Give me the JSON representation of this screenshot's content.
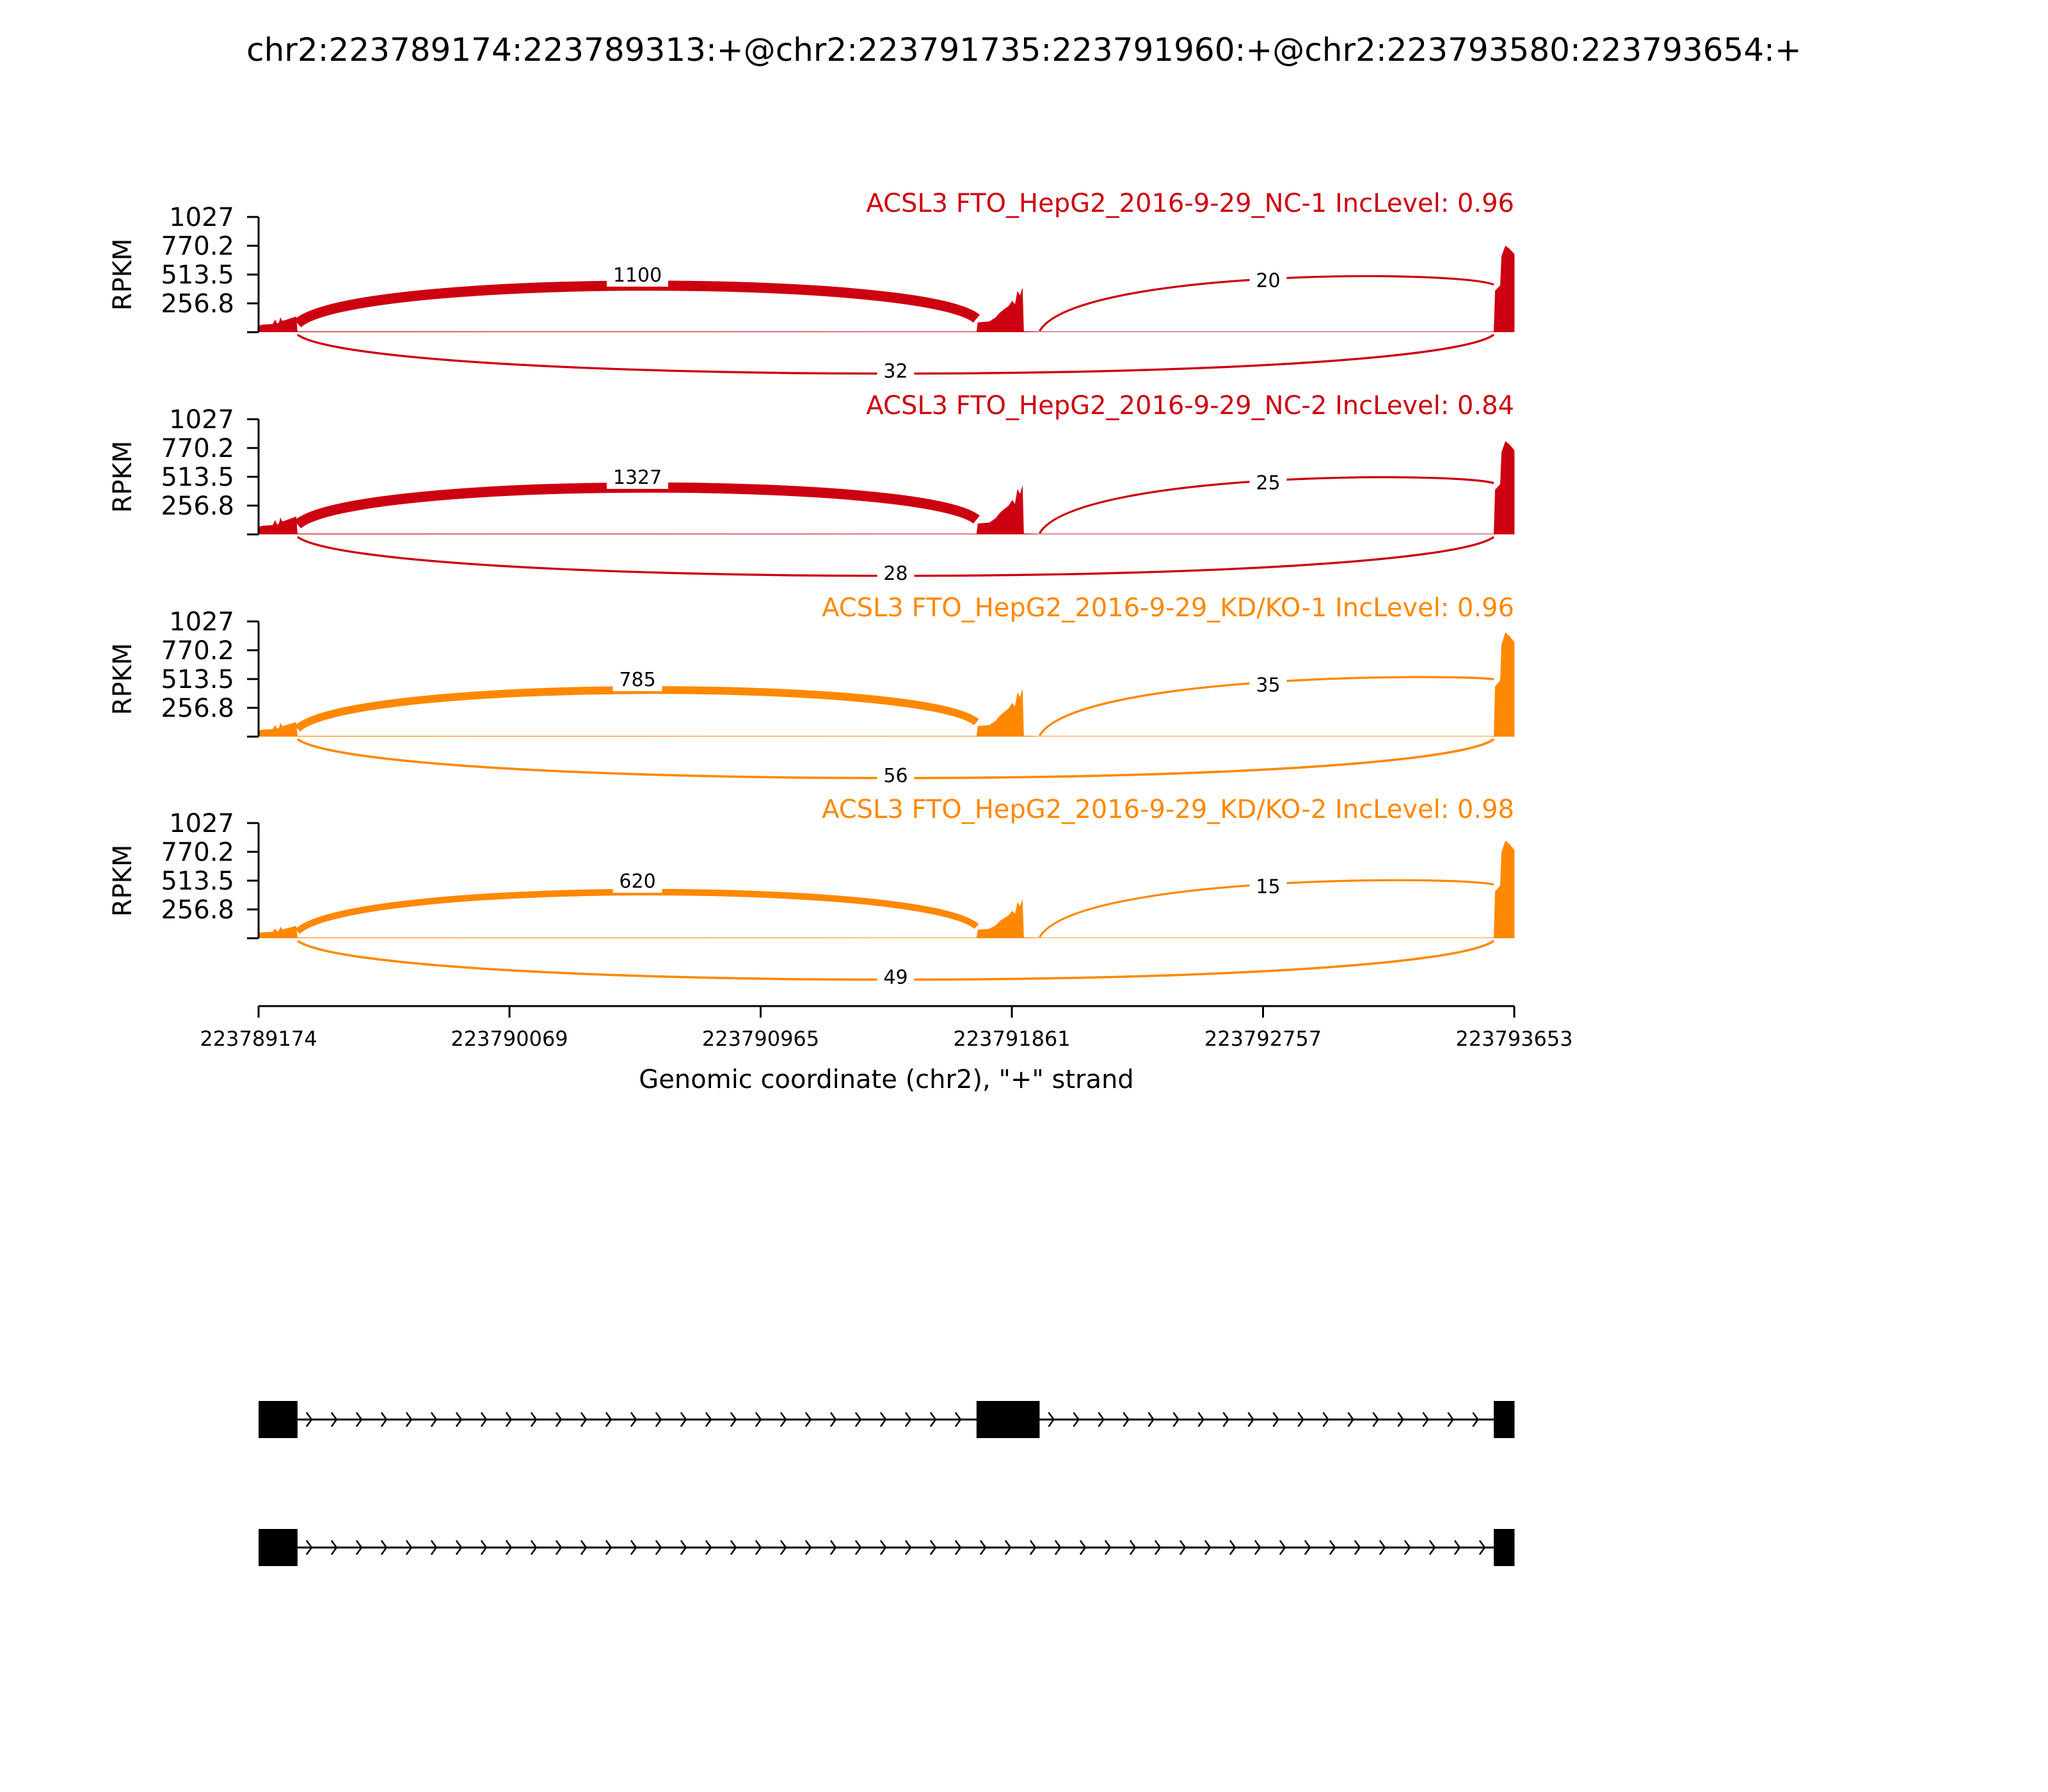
{
  "title": "chr2:223789174:223789313:+@chr2:223791735:223791960:+@chr2:223793580:223793654:+",
  "chart_data": {
    "type": "sashimi",
    "y_axis_label": "RPKM",
    "y_ticks": [
      "1027",
      "770.2",
      "513.5",
      "256.8"
    ],
    "ylim": [
      0,
      1027
    ],
    "x_axis_label": "Genomic coordinate (chr2), \"+\" strand",
    "x_ticks": [
      "223789174",
      "223790069",
      "223790965",
      "223791861",
      "223792757",
      "223793653"
    ],
    "xlim": [
      223789174,
      223793653
    ],
    "exons": [
      {
        "start": 223789174,
        "end": 223789313
      },
      {
        "start": 223791735,
        "end": 223791960
      },
      {
        "start": 223793580,
        "end": 223793654
      }
    ],
    "samples": [
      {
        "label": "ACSL3 FTO_HepG2_2016-9-29_NC-1 IncLevel: 0.96",
        "color": "#cc0011",
        "coverage_peaks": {
          "exon1": 140,
          "exon2": 400,
          "exon3": 770
        },
        "junctions": [
          {
            "from": 223789313,
            "to": 223791735,
            "count": "1100",
            "side": "above"
          },
          {
            "from": 223791960,
            "to": 223793580,
            "count": "20",
            "side": "above"
          },
          {
            "from": 223789313,
            "to": 223793580,
            "count": "32",
            "side": "below"
          }
        ]
      },
      {
        "label": "ACSL3 FTO_HepG2_2016-9-29_NC-2 IncLevel: 0.84",
        "color": "#cc0011",
        "coverage_peaks": {
          "exon1": 160,
          "exon2": 440,
          "exon3": 830
        },
        "junctions": [
          {
            "from": 223789313,
            "to": 223791735,
            "count": "1327",
            "side": "above"
          },
          {
            "from": 223791960,
            "to": 223793580,
            "count": "25",
            "side": "above"
          },
          {
            "from": 223789313,
            "to": 223793580,
            "count": "28",
            "side": "below"
          }
        ]
      },
      {
        "label": "ACSL3 FTO_HepG2_2016-9-29_KD/KO-1 IncLevel: 0.96",
        "color": "#ff8800",
        "coverage_peaks": {
          "exon1": 130,
          "exon2": 430,
          "exon3": 930
        },
        "junctions": [
          {
            "from": 223789313,
            "to": 223791735,
            "count": "785",
            "side": "above"
          },
          {
            "from": 223791960,
            "to": 223793580,
            "count": "35",
            "side": "above"
          },
          {
            "from": 223789313,
            "to": 223793580,
            "count": "56",
            "side": "below"
          }
        ]
      },
      {
        "label": "ACSL3 FTO_HepG2_2016-9-29_KD/KO-2 IncLevel: 0.98",
        "color": "#ff8800",
        "coverage_peaks": {
          "exon1": 110,
          "exon2": 350,
          "exon3": 870
        },
        "junctions": [
          {
            "from": 223789313,
            "to": 223791735,
            "count": "620",
            "side": "above"
          },
          {
            "from": 223791960,
            "to": 223793580,
            "count": "15",
            "side": "above"
          },
          {
            "from": 223789313,
            "to": 223793580,
            "count": "49",
            "side": "below"
          }
        ]
      }
    ],
    "isoforms": [
      {
        "exons": [
          [
            223789174,
            223789313
          ],
          [
            223791735,
            223791960
          ],
          [
            223793580,
            223793654
          ]
        ]
      },
      {
        "exons": [
          [
            223789174,
            223789313
          ],
          [
            223793580,
            223793654
          ]
        ]
      }
    ]
  }
}
